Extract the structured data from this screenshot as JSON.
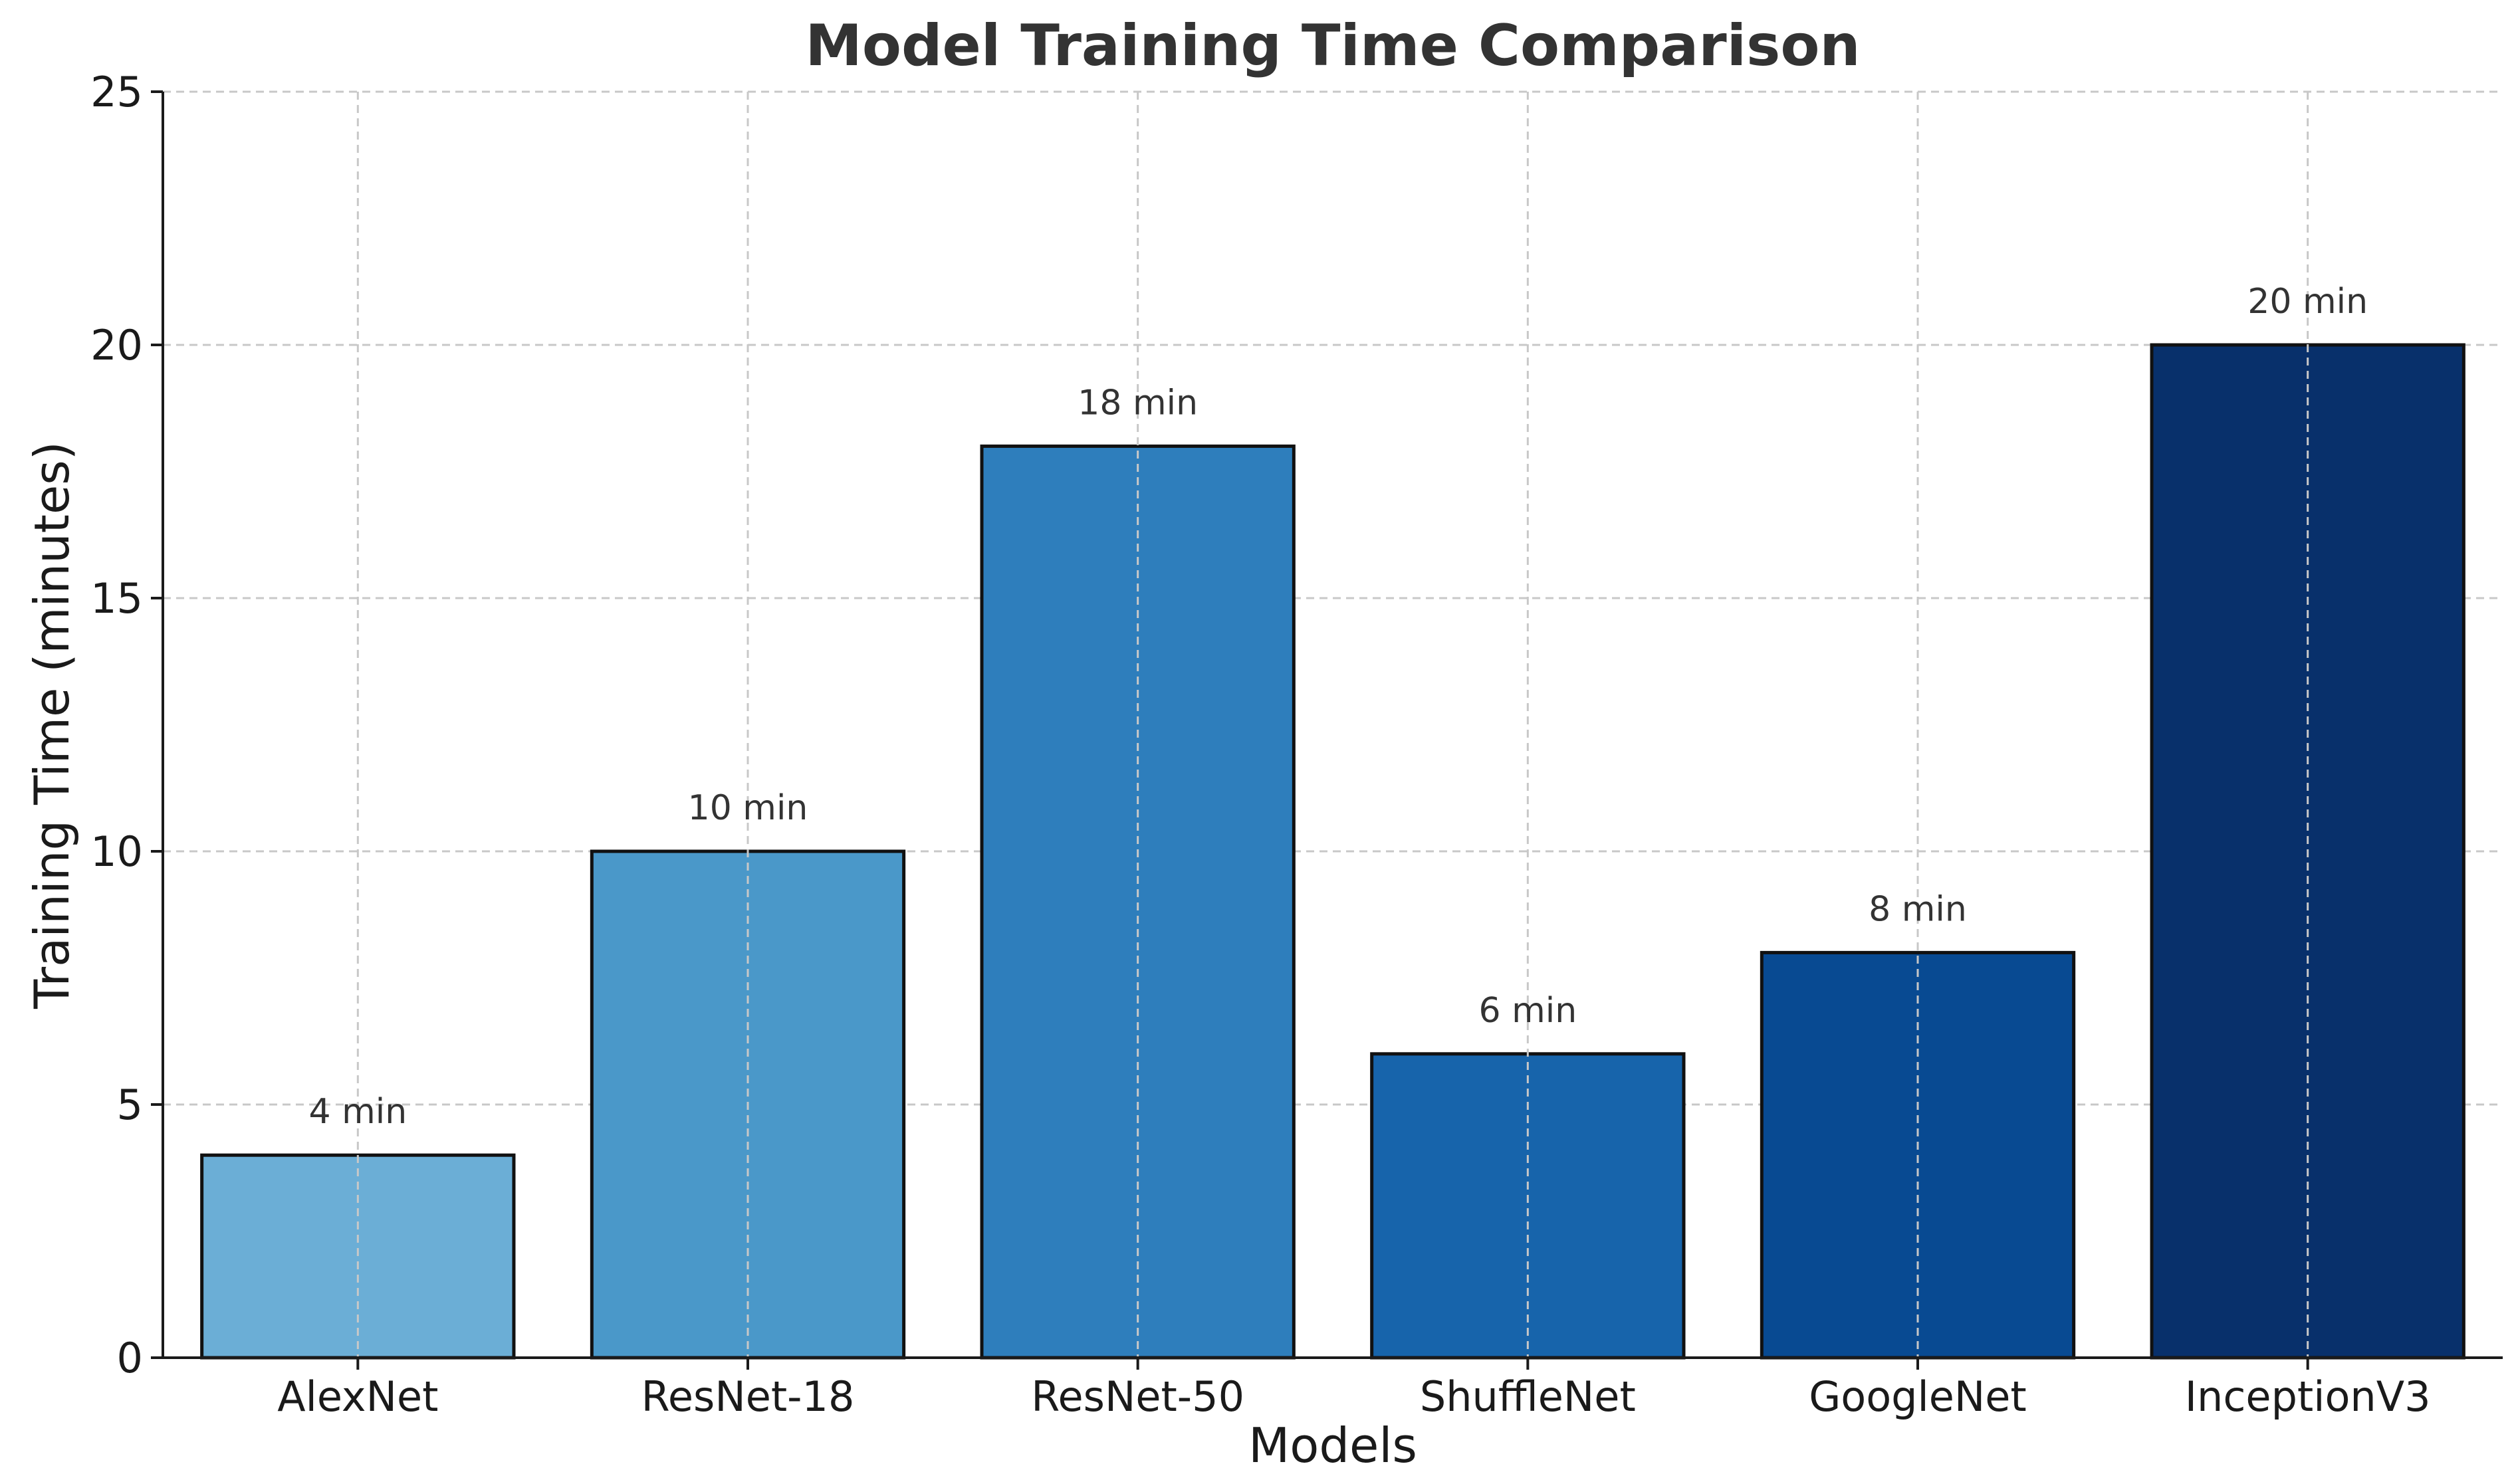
{
  "chart_data": {
    "type": "bar",
    "title": "Model Training Time Comparison",
    "xlabel": "Models",
    "ylabel": "Training Time (minutes)",
    "categories": [
      "AlexNet",
      "ResNet-18",
      "ResNet-50",
      "ShuffleNet",
      "GoogleNet",
      "InceptionV3"
    ],
    "values": [
      4,
      10,
      18,
      6,
      8,
      20
    ],
    "value_labels": [
      "4 min",
      "10 min",
      "18 min",
      "6 min",
      "8 min",
      "20 min"
    ],
    "colors": [
      "#6baed6",
      "#4a98c9",
      "#2e7ebc",
      "#1764ab",
      "#084a92",
      "#08306b"
    ],
    "ylim": [
      0,
      25
    ],
    "yticks": [
      0,
      5,
      10,
      15,
      20,
      25
    ],
    "ytick_labels": [
      "0",
      "5",
      "10",
      "15",
      "20",
      "25"
    ],
    "grid": true,
    "legend": false
  }
}
